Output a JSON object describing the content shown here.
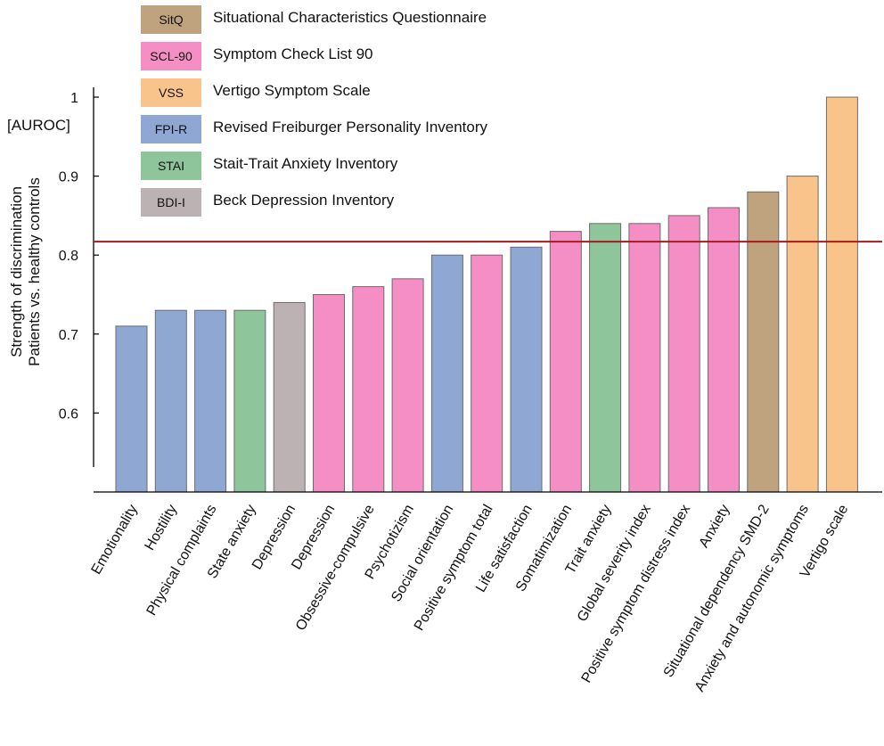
{
  "chart_data": {
    "type": "bar",
    "title": "",
    "ylabel_lines": [
      "Strength of discrimination",
      "Patients vs. healthy controls"
    ],
    "yunit": "[AUROC]",
    "ylim": [
      0.5,
      1.0
    ],
    "yticks": [
      0.6,
      0.7,
      0.8,
      0.9,
      1.0
    ],
    "ytick_labels": [
      "0.6",
      "0.7",
      "0.8",
      "0.9",
      "1"
    ],
    "threshold": 0.817,
    "threshold_color": "#a51c1c",
    "categories": [
      "Emotionality",
      "Hostility",
      "Physical complaints",
      "State anxiety",
      "Depression",
      "Depression",
      "Obsessive-compulsive",
      "Psychotizism",
      "Social orientation",
      "Positive symptom total",
      "Life satisfaction",
      "Somatimization",
      "Trait anxiety",
      "Global severity index",
      "Positive symptom distress index",
      "Anxiety",
      "Situational dependency SMD-2",
      "Anxiety and autonomic symptoms",
      "Vertigo scale"
    ],
    "values": [
      0.71,
      0.73,
      0.73,
      0.73,
      0.74,
      0.75,
      0.76,
      0.77,
      0.8,
      0.8,
      0.81,
      0.83,
      0.84,
      0.84,
      0.85,
      0.86,
      0.88,
      0.9,
      1.0
    ],
    "groups": [
      "FPI-R",
      "FPI-R",
      "FPI-R",
      "STAI",
      "BDI-I",
      "SCL-90",
      "SCL-90",
      "SCL-90",
      "FPI-R",
      "SCL-90",
      "FPI-R",
      "SCL-90",
      "STAI",
      "SCL-90",
      "SCL-90",
      "SCL-90",
      "SitQ",
      "VSS",
      "VSS"
    ],
    "legend": [
      {
        "key": "SitQ",
        "label": "Situational Characteristics Questionnaire",
        "color": "#bfa27e"
      },
      {
        "key": "SCL-90",
        "label": "Symptom Check List 90",
        "color": "#f58ec4"
      },
      {
        "key": "VSS",
        "label": "Vertigo Symptom Scale",
        "color": "#f9c48c"
      },
      {
        "key": "FPI-R",
        "label": "Revised Freiburger Personality Inventory",
        "color": "#8fa8d3"
      },
      {
        "key": "STAI",
        "label": "Stait-Trait Anxiety Inventory",
        "color": "#8ec59b"
      },
      {
        "key": "BDI-I",
        "label": "Beck Depression Inventory",
        "color": "#bcb2b3"
      }
    ]
  }
}
